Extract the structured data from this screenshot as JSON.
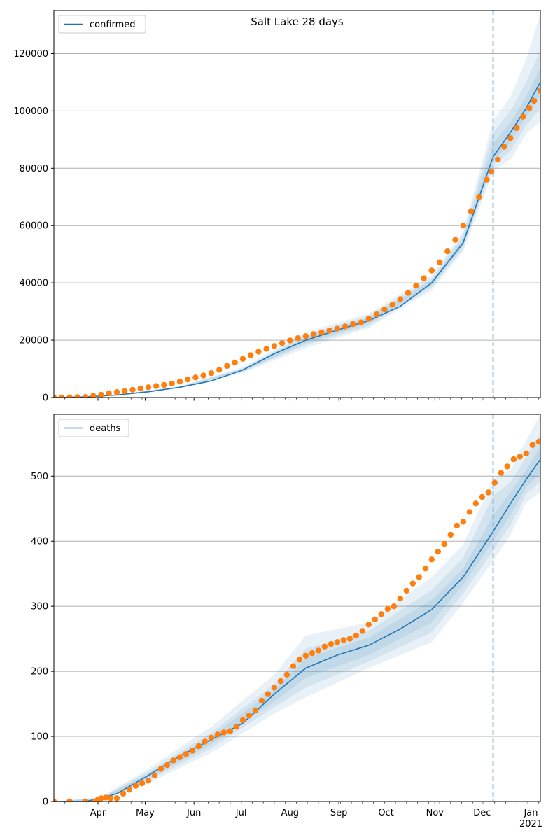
{
  "chart_data": [
    {
      "type": "line",
      "title": "Salt Lake 28 days",
      "legend": {
        "entries": [
          "confirmed"
        ],
        "placement": "top-left"
      },
      "ylim": [
        0,
        135000
      ],
      "yticks": [
        0,
        20000,
        40000,
        60000,
        80000,
        100000,
        120000
      ],
      "grid": "y",
      "forecast_start_day": 279,
      "model_median": {
        "x": [
          0,
          20,
          40,
          60,
          80,
          100,
          120,
          140,
          160,
          180,
          200,
          220,
          240,
          260,
          279,
          290,
          300,
          309
        ],
        "y": [
          0,
          200,
          900,
          2000,
          3600,
          5800,
          9600,
          15300,
          20000,
          23500,
          26800,
          31800,
          40000,
          54000,
          84000,
          92500,
          101000,
          110000
        ]
      },
      "bands": [
        {
          "x": [
            0,
            40,
            80,
            120,
            160,
            200,
            240,
            260,
            279,
            290,
            300,
            309
          ],
          "lo": [
            0,
            800,
            3300,
            8600,
            17300,
            24300,
            37400,
            51000,
            79000,
            83000,
            92000,
            96500
          ],
          "hi": [
            0,
            1000,
            3900,
            10600,
            22800,
            29300,
            42600,
            58000,
            96500,
            105000,
            118000,
            134000
          ]
        },
        {
          "x": [
            0,
            40,
            80,
            120,
            160,
            200,
            240,
            260,
            279,
            290,
            300,
            309
          ],
          "lo": [
            0,
            820,
            3400,
            9000,
            18300,
            25000,
            38400,
            52000,
            81000,
            86000,
            95000,
            101000
          ],
          "hi": [
            0,
            980,
            3800,
            10200,
            21800,
            28600,
            41600,
            56800,
            92500,
            100000,
            110000,
            121000
          ]
        },
        {
          "x": [
            0,
            40,
            80,
            120,
            160,
            200,
            240,
            260,
            279,
            290,
            300,
            309
          ],
          "lo": [
            0,
            850,
            3500,
            9300,
            19000,
            25800,
            39200,
            53000,
            82500,
            89000,
            98000,
            105000
          ],
          "hi": [
            0,
            950,
            3700,
            9900,
            21000,
            27800,
            40800,
            55500,
            88500,
            96000,
            105000,
            115000
          ]
        }
      ],
      "observed": [
        [
          0,
          0
        ],
        [
          5,
          50
        ],
        [
          10,
          80
        ],
        [
          15,
          120
        ],
        [
          20,
          200
        ],
        [
          25,
          600
        ],
        [
          30,
          1000
        ],
        [
          35,
          1500
        ],
        [
          40,
          1900
        ],
        [
          45,
          2200
        ],
        [
          50,
          2700
        ],
        [
          55,
          3200
        ],
        [
          60,
          3600
        ],
        [
          65,
          4000
        ],
        [
          70,
          4400
        ],
        [
          75,
          4900
        ],
        [
          80,
          5600
        ],
        [
          85,
          6300
        ],
        [
          90,
          7000
        ],
        [
          95,
          7700
        ],
        [
          100,
          8500
        ],
        [
          105,
          9700
        ],
        [
          110,
          11000
        ],
        [
          115,
          12200
        ],
        [
          120,
          13500
        ],
        [
          125,
          14800
        ],
        [
          130,
          16000
        ],
        [
          135,
          17000
        ],
        [
          140,
          18000
        ],
        [
          145,
          19000
        ],
        [
          150,
          19900
        ],
        [
          155,
          20700
        ],
        [
          160,
          21400
        ],
        [
          165,
          22100
        ],
        [
          170,
          22700
        ],
        [
          175,
          23400
        ],
        [
          180,
          24000
        ],
        [
          185,
          24800
        ],
        [
          190,
          25600
        ],
        [
          195,
          26200
        ],
        [
          200,
          27500
        ],
        [
          205,
          29000
        ],
        [
          210,
          30700
        ],
        [
          215,
          32400
        ],
        [
          220,
          34300
        ],
        [
          225,
          36500
        ],
        [
          230,
          39000
        ],
        [
          235,
          41600
        ],
        [
          240,
          44300
        ],
        [
          245,
          47200
        ],
        [
          250,
          51000
        ],
        [
          255,
          55000
        ],
        [
          260,
          60000
        ],
        [
          265,
          65000
        ],
        [
          270,
          70000
        ],
        [
          275,
          76000
        ],
        [
          278,
          78800
        ],
        [
          282,
          83000
        ],
        [
          286,
          87500
        ],
        [
          290,
          90500
        ],
        [
          294,
          94000
        ],
        [
          298,
          98000
        ],
        [
          302,
          101000
        ],
        [
          305,
          103500
        ],
        [
          309,
          107000
        ]
      ],
      "xticks": [
        {
          "label": "Apr",
          "day": 28
        },
        {
          "label": "May",
          "day": 58
        },
        {
          "label": "Jun",
          "day": 89
        },
        {
          "label": "Jul",
          "day": 119
        },
        {
          "label": "Aug",
          "day": 150
        },
        {
          "label": "Sep",
          "day": 181
        },
        {
          "label": "Oct",
          "day": 211
        },
        {
          "label": "Nov",
          "day": 242
        },
        {
          "label": "Dec",
          "day": 272
        },
        {
          "label": "Jan\n2021",
          "day": 303
        }
      ],
      "colors": {
        "median": "#1f77b4",
        "band": "#1f77b4",
        "observed": "#ff7f0e",
        "vline": "#7fb0d6",
        "grid": "#b0b0b0"
      }
    },
    {
      "type": "line",
      "legend": {
        "entries": [
          "deaths"
        ],
        "placement": "top-left"
      },
      "ylim": [
        0,
        595
      ],
      "yticks": [
        0,
        100,
        200,
        300,
        400,
        500
      ],
      "grid": "y",
      "forecast_start_day": 279,
      "model_median": {
        "x": [
          0,
          20,
          30,
          40,
          60,
          80,
          100,
          120,
          140,
          160,
          180,
          200,
          220,
          240,
          260,
          279,
          290,
          300,
          309
        ],
        "y": [
          0,
          0,
          5,
          12,
          40,
          70,
          95,
          120,
          165,
          205,
          225,
          240,
          265,
          295,
          345,
          415,
          458,
          495,
          526
        ]
      },
      "bands": [
        {
          "x": [
            0,
            30,
            60,
            100,
            140,
            160,
            200,
            240,
            260,
            279,
            290,
            300,
            309
          ],
          "lo": [
            0,
            0,
            28,
            75,
            135,
            160,
            205,
            245,
            305,
            370,
            410,
            460,
            475
          ],
          "hi": [
            0,
            7,
            50,
            115,
            195,
            255,
            275,
            345,
            395,
            495,
            510,
            555,
            595
          ]
        },
        {
          "x": [
            0,
            30,
            60,
            100,
            140,
            160,
            200,
            240,
            260,
            279,
            290,
            300,
            309
          ],
          "lo": [
            0,
            1,
            32,
            82,
            145,
            175,
            215,
            260,
            320,
            385,
            425,
            472,
            492
          ],
          "hi": [
            0,
            6,
            46,
            106,
            180,
            235,
            262,
            325,
            375,
            470,
            490,
            530,
            565
          ]
        },
        {
          "x": [
            0,
            30,
            60,
            100,
            140,
            160,
            200,
            240,
            260,
            279,
            290,
            300,
            309
          ],
          "lo": [
            0,
            2,
            35,
            88,
            153,
            190,
            225,
            275,
            333,
            400,
            440,
            483,
            505
          ],
          "hi": [
            0,
            5,
            43,
            100,
            172,
            220,
            252,
            310,
            358,
            440,
            475,
            510,
            545
          ]
        }
      ],
      "observed": [
        [
          0,
          0
        ],
        [
          10,
          0
        ],
        [
          20,
          0
        ],
        [
          26,
          0
        ],
        [
          28,
          3
        ],
        [
          30,
          5
        ],
        [
          33,
          6
        ],
        [
          36,
          5
        ],
        [
          40,
          5
        ],
        [
          44,
          12
        ],
        [
          48,
          18
        ],
        [
          52,
          24
        ],
        [
          56,
          28
        ],
        [
          60,
          32
        ],
        [
          64,
          40
        ],
        [
          68,
          50
        ],
        [
          72,
          56
        ],
        [
          76,
          63
        ],
        [
          80,
          68
        ],
        [
          84,
          73
        ],
        [
          88,
          78
        ],
        [
          92,
          85
        ],
        [
          96,
          92
        ],
        [
          100,
          98
        ],
        [
          104,
          103
        ],
        [
          108,
          106
        ],
        [
          112,
          108
        ],
        [
          116,
          115
        ],
        [
          120,
          125
        ],
        [
          124,
          132
        ],
        [
          128,
          140
        ],
        [
          132,
          155
        ],
        [
          136,
          165
        ],
        [
          140,
          175
        ],
        [
          144,
          185
        ],
        [
          148,
          195
        ],
        [
          152,
          208
        ],
        [
          156,
          218
        ],
        [
          160,
          224
        ],
        [
          164,
          228
        ],
        [
          168,
          232
        ],
        [
          172,
          238
        ],
        [
          176,
          242
        ],
        [
          180,
          245
        ],
        [
          184,
          248
        ],
        [
          188,
          250
        ],
        [
          192,
          255
        ],
        [
          196,
          262
        ],
        [
          200,
          272
        ],
        [
          204,
          280
        ],
        [
          208,
          288
        ],
        [
          212,
          296
        ],
        [
          216,
          300
        ],
        [
          220,
          312
        ],
        [
          224,
          324
        ],
        [
          228,
          335
        ],
        [
          232,
          345
        ],
        [
          236,
          358
        ],
        [
          240,
          372
        ],
        [
          244,
          384
        ],
        [
          248,
          396
        ],
        [
          252,
          410
        ],
        [
          256,
          424
        ],
        [
          260,
          430
        ],
        [
          264,
          445
        ],
        [
          268,
          458
        ],
        [
          272,
          468
        ],
        [
          276,
          475
        ],
        [
          280,
          490
        ],
        [
          284,
          505
        ],
        [
          288,
          515
        ],
        [
          292,
          526
        ],
        [
          296,
          530
        ],
        [
          300,
          535
        ],
        [
          304,
          548
        ],
        [
          308,
          553
        ]
      ],
      "xticks": [
        {
          "label": "Apr",
          "day": 28
        },
        {
          "label": "May",
          "day": 58
        },
        {
          "label": "Jun",
          "day": 89
        },
        {
          "label": "Jul",
          "day": 119
        },
        {
          "label": "Aug",
          "day": 150
        },
        {
          "label": "Sep",
          "day": 181
        },
        {
          "label": "Oct",
          "day": 211
        },
        {
          "label": "Nov",
          "day": 242
        },
        {
          "label": "Dec",
          "day": 272
        },
        {
          "label": "Jan\n2021",
          "day": 303
        }
      ],
      "colors": {
        "median": "#1f77b4",
        "band": "#1f77b4",
        "observed": "#ff7f0e",
        "vline": "#7fb0d6",
        "grid": "#b0b0b0"
      }
    }
  ]
}
